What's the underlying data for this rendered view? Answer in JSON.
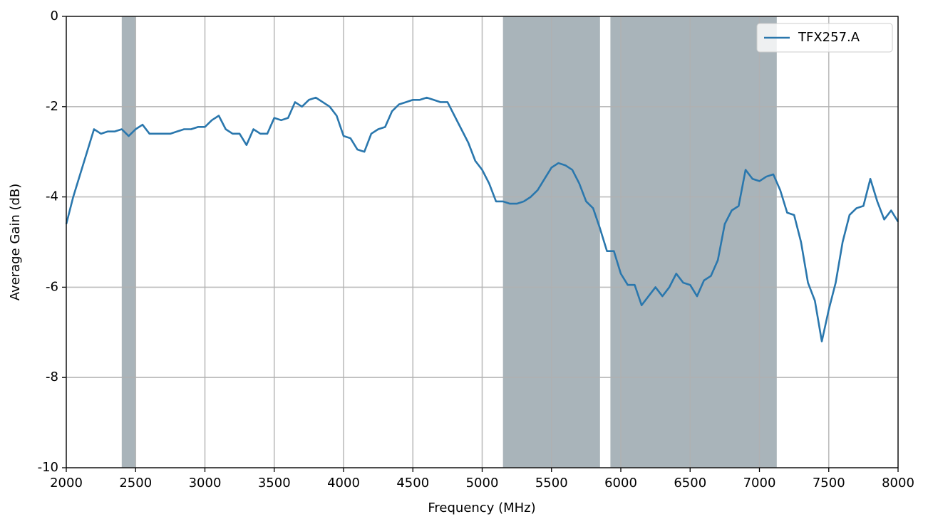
{
  "chart_data": {
    "type": "line",
    "xlabel": "Frequency (MHz)",
    "ylabel": "Average Gain (dB)",
    "x": [
      2000,
      2050,
      2100,
      2150,
      2200,
      2250,
      2300,
      2350,
      2400,
      2450,
      2500,
      2550,
      2600,
      2650,
      2700,
      2750,
      2800,
      2850,
      2900,
      2950,
      3000,
      3050,
      3100,
      3150,
      3200,
      3250,
      3300,
      3350,
      3400,
      3450,
      3500,
      3550,
      3600,
      3650,
      3700,
      3750,
      3800,
      3850,
      3900,
      3950,
      4000,
      4050,
      4100,
      4150,
      4200,
      4250,
      4300,
      4350,
      4400,
      4450,
      4500,
      4550,
      4600,
      4650,
      4700,
      4750,
      4800,
      4850,
      4900,
      4950,
      5000,
      5050,
      5100,
      5150,
      5200,
      5250,
      5300,
      5350,
      5400,
      5450,
      5500,
      5550,
      5600,
      5650,
      5700,
      5750,
      5800,
      5850,
      5900,
      5950,
      6000,
      6050,
      6100,
      6150,
      6200,
      6250,
      6300,
      6350,
      6400,
      6450,
      6500,
      6550,
      6600,
      6650,
      6700,
      6750,
      6800,
      6850,
      6900,
      6950,
      7000,
      7050,
      7100,
      7150,
      7200,
      7250,
      7300,
      7350,
      7400,
      7450,
      7500,
      7550,
      7600,
      7650,
      7700,
      7750,
      7800,
      7850,
      7900,
      7950,
      8000
    ],
    "series": [
      {
        "name": "TFX257.A",
        "color": "#2a77ad",
        "values": [
          -4.6,
          -4.0,
          -3.5,
          -3.0,
          -2.5,
          -2.6,
          -2.55,
          -2.55,
          -2.5,
          -2.65,
          -2.5,
          -2.4,
          -2.6,
          -2.6,
          -2.6,
          -2.6,
          -2.55,
          -2.5,
          -2.5,
          -2.45,
          -2.45,
          -2.3,
          -2.2,
          -2.5,
          -2.6,
          -2.6,
          -2.85,
          -2.5,
          -2.6,
          -2.6,
          -2.25,
          -2.3,
          -2.25,
          -1.9,
          -2.0,
          -1.85,
          -1.8,
          -1.9,
          -2.0,
          -2.2,
          -2.65,
          -2.7,
          -2.95,
          -3.0,
          -2.6,
          -2.5,
          -2.45,
          -2.1,
          -1.95,
          -1.9,
          -1.85,
          -1.85,
          -1.8,
          -1.85,
          -1.9,
          -1.9,
          -2.2,
          -2.5,
          -2.8,
          -3.2,
          -3.4,
          -3.7,
          -4.1,
          -4.1,
          -4.15,
          -4.15,
          -4.1,
          -4.0,
          -3.85,
          -3.6,
          -3.35,
          -3.25,
          -3.3,
          -3.4,
          -3.7,
          -4.1,
          -4.25,
          -4.7,
          -5.2,
          -5.2,
          -5.7,
          -5.95,
          -5.95,
          -6.4,
          -6.2,
          -6.0,
          -6.2,
          -6.0,
          -5.7,
          -5.9,
          -5.95,
          -6.2,
          -5.85,
          -5.75,
          -5.4,
          -4.6,
          -4.3,
          -4.2,
          -3.4,
          -3.6,
          -3.65,
          -3.55,
          -3.5,
          -3.85,
          -4.35,
          -4.4,
          -5.0,
          -5.9,
          -6.3,
          -7.2,
          -6.5,
          -5.9,
          -5.0,
          -4.4,
          -4.25,
          -4.2,
          -3.6,
          -4.1,
          -4.5,
          -4.3,
          -4.55
        ]
      }
    ],
    "shaded_regions": [
      [
        2400,
        2500
      ],
      [
        5150,
        5850
      ],
      [
        5925,
        7125
      ]
    ],
    "shade_color": "#a9b4ba",
    "xlim": [
      2000,
      8000
    ],
    "xticks": [
      2000,
      2500,
      3000,
      3500,
      4000,
      4500,
      5000,
      5500,
      6000,
      6500,
      7000,
      7500,
      8000
    ],
    "ylim": [
      -10,
      0
    ],
    "yticks": [
      -10,
      -8,
      -6,
      -4,
      -2,
      0
    ],
    "grid": true,
    "legend": "upper right"
  }
}
